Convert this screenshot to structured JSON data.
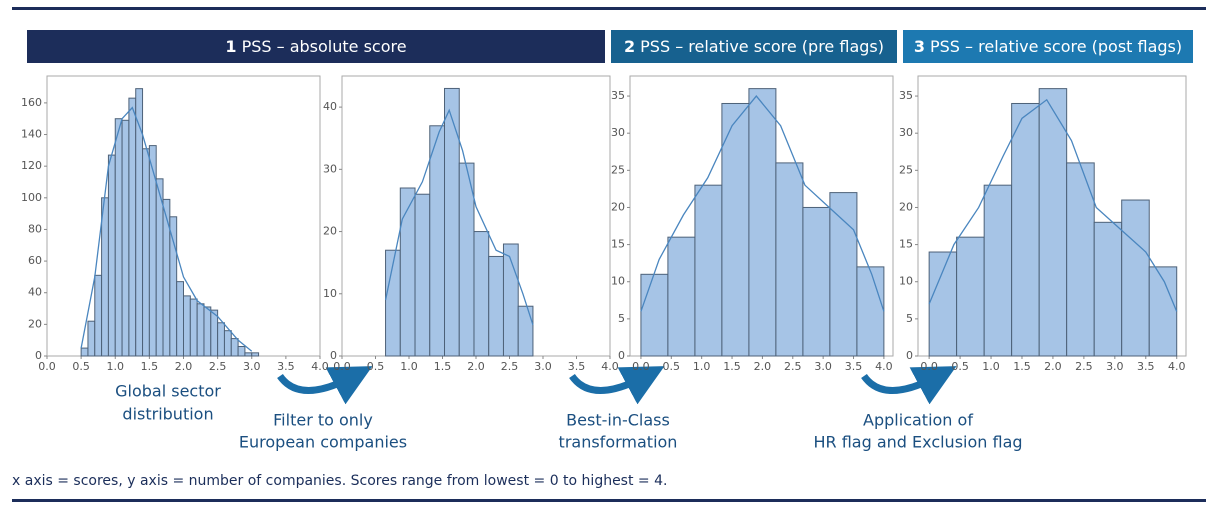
{
  "headers": [
    {
      "number": "1",
      "text": "PSS – absolute score"
    },
    {
      "number": "2",
      "text": "PSS – relative score (pre flags)"
    },
    {
      "number": "3",
      "text": "PSS – relative score (post flags)"
    }
  ],
  "annotations": [
    {
      "lines": [
        "Global sector",
        "distribution"
      ]
    },
    {
      "lines": [
        "Filter to only",
        "European companies"
      ]
    },
    {
      "lines": [
        "Best-in-Class",
        "transformation"
      ]
    },
    {
      "lines": [
        "Application of",
        "HR flag and Exclusion flag"
      ]
    }
  ],
  "footnote": "x axis = scores, y axis = number of companies. Scores range from lowest = 0 to highest = 4.",
  "chart_data": [
    {
      "type": "histogram",
      "color": "#a6c4e6",
      "bins": [
        0.5,
        0.6,
        0.7,
        0.8,
        0.9,
        1.0,
        1.1,
        1.2,
        1.3,
        1.4,
        1.5,
        1.6,
        1.7,
        1.8,
        1.9,
        2.0,
        2.1,
        2.2,
        2.3,
        2.4,
        2.5,
        2.6,
        2.7,
        2.8,
        2.9,
        3.0,
        3.1
      ],
      "values": [
        5,
        22,
        51,
        100,
        127,
        150,
        149,
        163,
        169,
        131,
        133,
        112,
        99,
        88,
        47,
        38,
        36,
        33,
        31,
        29,
        21,
        16,
        11,
        6,
        2,
        2
      ],
      "kde": {
        "x": [
          0.5,
          0.7,
          0.9,
          1.1,
          1.25,
          1.4,
          1.6,
          1.8,
          2.0,
          2.2,
          2.5,
          2.8,
          3.0
        ],
        "values": [
          5,
          50,
          120,
          150,
          157,
          140,
          110,
          80,
          50,
          35,
          25,
          10,
          3
        ]
      },
      "xlim": [
        0,
        4
      ],
      "ylim": [
        0,
        177
      ],
      "xticks": [
        {
          "value": 0,
          "label": "0.0"
        },
        0.5,
        {
          "value": 1,
          "label": "1.0"
        },
        1.5,
        {
          "value": 2,
          "label": "2.0"
        },
        2.5,
        {
          "value": 3,
          "label": "3.0"
        },
        3.5,
        {
          "value": 4,
          "label": "4.0"
        }
      ],
      "yticks": [
        0,
        20,
        40,
        60,
        80,
        100,
        120,
        140,
        160
      ]
    },
    {
      "type": "histogram",
      "color": "#a6c4e6",
      "bins": [
        0.65,
        0.87,
        1.09,
        1.31,
        1.53,
        1.75,
        1.97,
        2.19,
        2.41,
        2.63,
        2.85
      ],
      "values": [
        17,
        27,
        26,
        37,
        43,
        31,
        20,
        16,
        18,
        8
      ],
      "kde": {
        "x": [
          0.65,
          0.9,
          1.2,
          1.45,
          1.6,
          1.8,
          2.0,
          2.3,
          2.5,
          2.7,
          2.85
        ],
        "values": [
          9,
          22,
          28,
          36,
          39.5,
          33,
          24,
          17,
          16,
          10,
          5
        ]
      },
      "xlim": [
        0,
        4
      ],
      "ylim": [
        0,
        45
      ],
      "xticks": [
        {
          "value": 0,
          "label": "0.0"
        },
        0.5,
        {
          "value": 1,
          "label": "1.0"
        },
        1.5,
        {
          "value": 2,
          "label": "2.0"
        },
        2.5,
        {
          "value": 3,
          "label": "3.0"
        },
        3.5,
        {
          "value": 4,
          "label": "4.0"
        }
      ],
      "yticks": [
        0,
        10,
        20,
        30,
        40
      ]
    },
    {
      "type": "histogram",
      "color": "#a6c4e6",
      "bins": [
        0,
        0.444,
        0.889,
        1.333,
        1.778,
        2.222,
        2.667,
        3.111,
        3.556,
        4
      ],
      "values": [
        11,
        16,
        23,
        34,
        36,
        26,
        20,
        22,
        12
      ],
      "kde": {
        "x": [
          0,
          0.3,
          0.7,
          1.1,
          1.5,
          1.9,
          2.3,
          2.7,
          3.1,
          3.5,
          3.8,
          4.0
        ],
        "values": [
          6,
          13,
          19,
          24,
          31,
          35,
          31,
          23,
          20,
          17,
          11,
          6
        ]
      },
      "xlim": [
        -0.18,
        4.15
      ],
      "ylim": [
        0,
        37.7
      ],
      "xticks": [
        {
          "value": 0,
          "label": "0.0"
        },
        0.5,
        {
          "value": 1,
          "label": "1.0"
        },
        1.5,
        {
          "value": 2,
          "label": "2.0"
        },
        2.5,
        {
          "value": 3,
          "label": "3.0"
        },
        3.5,
        {
          "value": 4,
          "label": "4.0"
        }
      ],
      "yticks": [
        0,
        5,
        10,
        15,
        20,
        25,
        30,
        35
      ]
    },
    {
      "type": "histogram",
      "color": "#a6c4e6",
      "bins": [
        0,
        0.444,
        0.889,
        1.333,
        1.778,
        2.222,
        2.667,
        3.111,
        3.556,
        4
      ],
      "values": [
        14,
        16,
        23,
        34,
        36,
        26,
        18,
        21,
        12
      ],
      "kde": {
        "x": [
          0,
          0.4,
          0.8,
          1.2,
          1.5,
          1.9,
          2.3,
          2.7,
          3.1,
          3.5,
          3.8,
          4.0
        ],
        "values": [
          7,
          15,
          20,
          27,
          32,
          34.5,
          29,
          20,
          17,
          14,
          10,
          6
        ]
      },
      "xlim": [
        -0.18,
        4.15
      ],
      "ylim": [
        0,
        37.7
      ],
      "xticks": [
        {
          "value": 0,
          "label": "0.0"
        },
        0.5,
        {
          "value": 1,
          "label": "1.0"
        },
        1.5,
        {
          "value": 2,
          "label": "2.0"
        },
        2.5,
        {
          "value": 3,
          "label": "3.0"
        },
        3.5,
        {
          "value": 4,
          "label": "4.0"
        }
      ],
      "yticks": [
        0,
        5,
        10,
        15,
        20,
        25,
        30,
        35
      ]
    }
  ]
}
